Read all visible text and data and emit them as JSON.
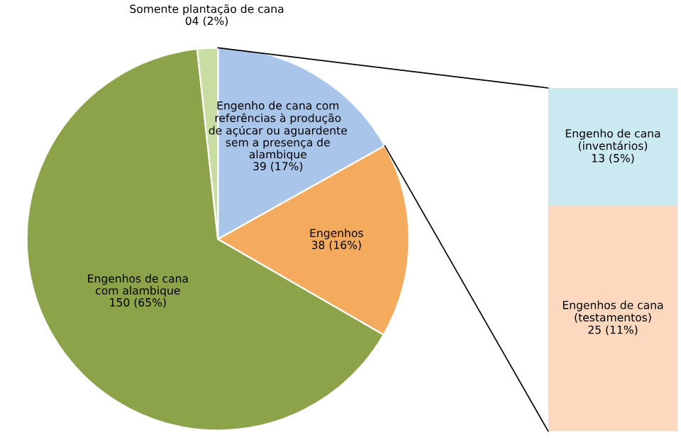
{
  "chart_data": [
    {
      "type": "pie",
      "categories": [
        "Engenho de cana com\nreferências à produção\nde açúcar ou aguardente\nsem a presença de\nalambique",
        "Engenhos",
        "Engenhos de cana\ncom alambique",
        "Somente plantação de cana"
      ],
      "values": [
        39,
        38,
        150,
        4
      ],
      "value_labels": [
        "39 (17%)",
        "38 (16%)",
        "150 (65%)",
        "04 (2%)"
      ],
      "colors": [
        "#a9c6ea",
        "#f5ab5e",
        "#8da34a",
        "#c9dca2"
      ]
    },
    {
      "type": "bar",
      "stacked": true,
      "categories": [
        null
      ],
      "series": [
        {
          "name": "Engenhos de cana\n(testamentos)",
          "color": "#fcd8bf",
          "values": [
            25
          ],
          "value_labels": [
            "25 (11%)"
          ]
        },
        {
          "name": "Engenho de cana\n(inventários)",
          "color": "#cbe9f0",
          "values": [
            13
          ],
          "value_labels": [
            "13 (5%)"
          ]
        }
      ]
    }
  ]
}
